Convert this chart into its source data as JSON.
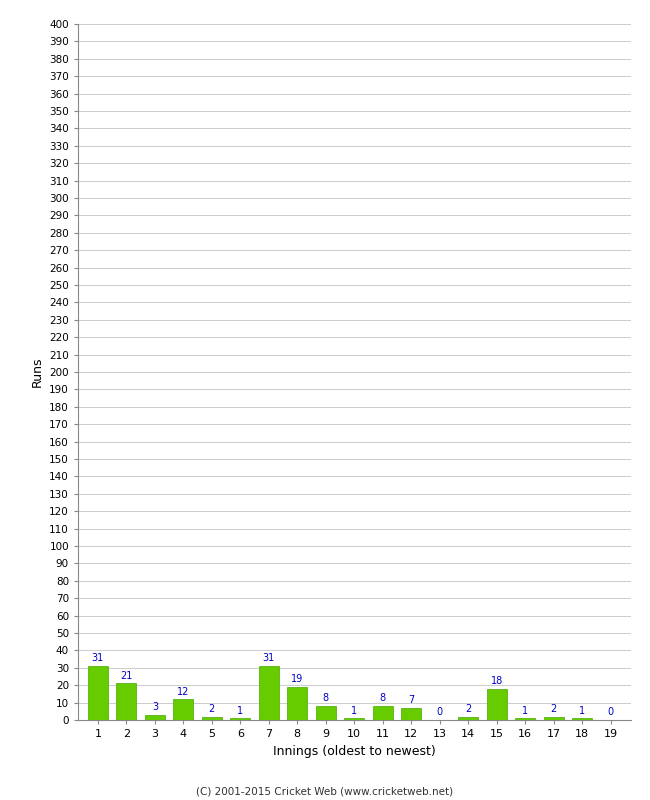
{
  "xlabel": "Innings (oldest to newest)",
  "ylabel": "Runs",
  "innings": [
    1,
    2,
    3,
    4,
    5,
    6,
    7,
    8,
    9,
    10,
    11,
    12,
    13,
    14,
    15,
    16,
    17,
    18,
    19
  ],
  "values": [
    31,
    21,
    3,
    12,
    2,
    1,
    31,
    19,
    8,
    1,
    8,
    7,
    0,
    2,
    18,
    1,
    2,
    1,
    0
  ],
  "bar_color": "#66cc00",
  "bar_edge_color": "#44aa00",
  "label_color": "#0000cc",
  "ylim": [
    0,
    400
  ],
  "background_color": "#ffffff",
  "grid_color": "#cccccc",
  "footer": "(C) 2001-2015 Cricket Web (www.cricketweb.net)"
}
